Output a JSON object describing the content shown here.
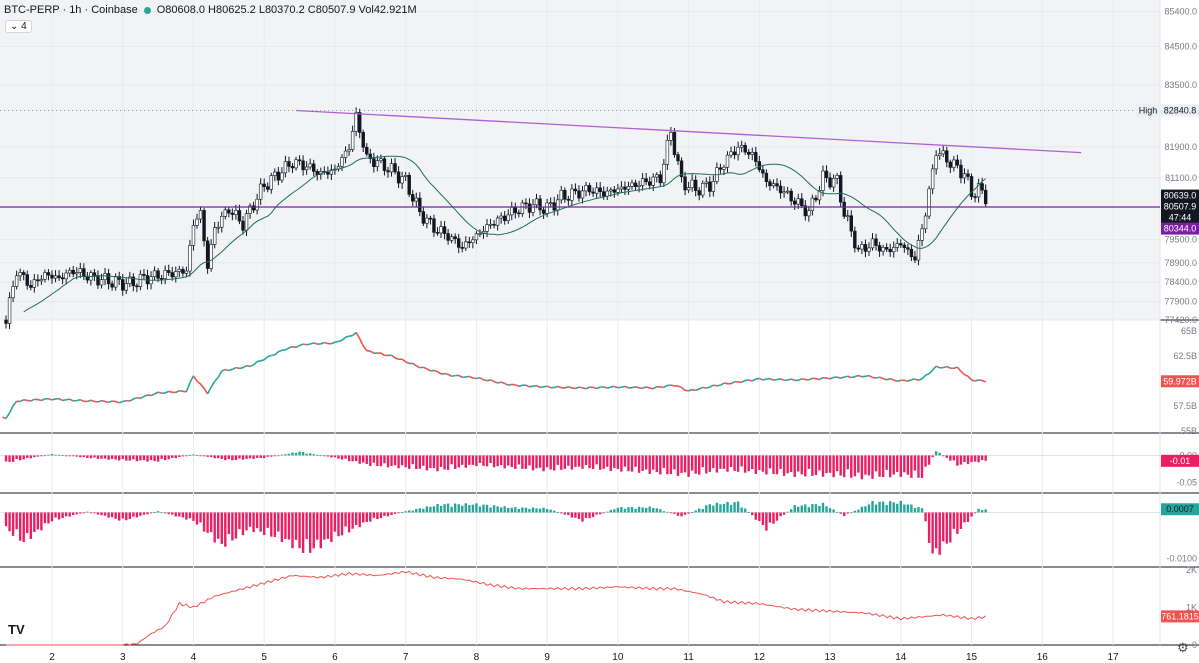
{
  "header": {
    "symbol": "BTC-PERP · 1h · Coinbase",
    "ohlcv": "O80608.0 H80625.2 L80370.2 C80507.9 Vol42.921M",
    "collapse_label": "4"
  },
  "logo_text": "TV",
  "colors": {
    "up": "#26a69a",
    "down": "#ef5350",
    "ma": "#1f6e5d",
    "trend": "#b05fd6",
    "level": "#7b1fa2",
    "osc": "#e91e63"
  },
  "chart_data": [
    {
      "type": "candlestick",
      "pane": "price",
      "ylim": [
        77420,
        85700
      ],
      "yticks": [
        "85400.0",
        "84500.0",
        "83500.0",
        "82840.8",
        "81900.0",
        "81100.0",
        "80639.0",
        "79500.0",
        "78900.0",
        "78400.0",
        "77900.0",
        "77420.0"
      ],
      "xticks": [
        "2",
        "3",
        "4",
        "5",
        "6",
        "7",
        "8",
        "9",
        "10",
        "11",
        "12",
        "13",
        "14",
        "15",
        "16",
        "17"
      ],
      "x_range": [
        1.3,
        17.8
      ],
      "closes": [
        [
          1.35,
          77420
        ],
        [
          1.5,
          78700
        ],
        [
          1.7,
          78300
        ],
        [
          1.9,
          78600
        ],
        [
          2.1,
          78500
        ],
        [
          2.3,
          78700
        ],
        [
          2.6,
          78500
        ],
        [
          2.9,
          78400
        ],
        [
          3.1,
          78350
        ],
        [
          3.3,
          78500
        ],
        [
          3.6,
          78600
        ],
        [
          3.9,
          78700
        ],
        [
          4.0,
          79900
        ],
        [
          4.1,
          80200
        ],
        [
          4.2,
          78800
        ],
        [
          4.3,
          79800
        ],
        [
          4.5,
          80300
        ],
        [
          4.7,
          79900
        ],
        [
          4.9,
          80600
        ],
        [
          5.0,
          80900
        ],
        [
          5.2,
          81200
        ],
        [
          5.4,
          81500
        ],
        [
          5.6,
          81400
        ],
        [
          5.8,
          81200
        ],
        [
          6.0,
          81300
        ],
        [
          6.2,
          81900
        ],
        [
          6.3,
          82700
        ],
        [
          6.45,
          81600
        ],
        [
          6.6,
          81500
        ],
        [
          6.8,
          81300
        ],
        [
          7.0,
          81000
        ],
        [
          7.2,
          80200
        ],
        [
          7.4,
          79800
        ],
        [
          7.6,
          79600
        ],
        [
          7.8,
          79300
        ],
        [
          8.0,
          79600
        ],
        [
          8.2,
          79900
        ],
        [
          8.4,
          80100
        ],
        [
          8.6,
          80300
        ],
        [
          8.8,
          80400
        ],
        [
          9.0,
          80300
        ],
        [
          9.2,
          80600
        ],
        [
          9.4,
          80700
        ],
        [
          9.6,
          80800
        ],
        [
          9.8,
          80700
        ],
        [
          10.0,
          80800
        ],
        [
          10.2,
          80900
        ],
        [
          10.4,
          81000
        ],
        [
          10.6,
          81100
        ],
        [
          10.75,
          82300
        ],
        [
          10.9,
          81000
        ],
        [
          11.1,
          80800
        ],
        [
          11.3,
          80900
        ],
        [
          11.5,
          81500
        ],
        [
          11.7,
          81900
        ],
        [
          11.9,
          81700
        ],
        [
          12.1,
          81000
        ],
        [
          12.3,
          80800
        ],
        [
          12.5,
          80500
        ],
        [
          12.7,
          80200
        ],
        [
          12.9,
          81100
        ],
        [
          13.1,
          81000
        ],
        [
          13.2,
          80200
        ],
        [
          13.4,
          79200
        ],
        [
          13.6,
          79400
        ],
        [
          13.8,
          79200
        ],
        [
          14.0,
          79400
        ],
        [
          14.2,
          79000
        ],
        [
          14.35,
          80200
        ],
        [
          14.5,
          81800
        ],
        [
          14.7,
          81500
        ],
        [
          14.9,
          81200
        ],
        [
          15.0,
          80700
        ],
        [
          15.1,
          80800
        ],
        [
          15.25,
          80508
        ]
      ],
      "ma_label": "",
      "trendline": {
        "from": [
          5.45,
          82840.8
        ],
        "to": [
          16.55,
          81750
        ]
      },
      "level_line": 80344.0,
      "level_line2": 82840.8,
      "labels": [
        {
          "text": "High",
          "value": "82840.8",
          "y": 82840.8,
          "style": "plain"
        },
        {
          "text": "",
          "value": "80639.0",
          "y": 80639.0,
          "style": "dark"
        },
        {
          "text": "",
          "value": "80507.9",
          "y": 80507.9,
          "style": "dark"
        },
        {
          "text": "",
          "value": "47:44",
          "y": 80420,
          "style": "dark-small"
        },
        {
          "text": "",
          "value": "80344.0",
          "y": 80344.0,
          "style": "purple"
        }
      ]
    },
    {
      "type": "line-dotted",
      "pane": "indicator-1",
      "ylim": [
        54800,
        66000
      ],
      "yticks": [
        "65B",
        "62.5B",
        "57.5B",
        "55B"
      ],
      "last_label": "59.972B",
      "values": [
        [
          1.35,
          56300
        ],
        [
          1.5,
          58000
        ],
        [
          2.0,
          58200
        ],
        [
          2.5,
          58000
        ],
        [
          3.0,
          57900
        ],
        [
          3.5,
          58800
        ],
        [
          3.9,
          59000
        ],
        [
          4.0,
          60500
        ],
        [
          4.2,
          58800
        ],
        [
          4.4,
          61000
        ],
        [
          4.8,
          61500
        ],
        [
          5.0,
          62200
        ],
        [
          5.3,
          63200
        ],
        [
          5.6,
          63700
        ],
        [
          6.0,
          63800
        ],
        [
          6.3,
          64800
        ],
        [
          6.45,
          63000
        ],
        [
          6.8,
          62500
        ],
        [
          7.2,
          61400
        ],
        [
          7.6,
          60600
        ],
        [
          8.0,
          60300
        ],
        [
          8.5,
          59600
        ],
        [
          9.0,
          59400
        ],
        [
          9.5,
          59300
        ],
        [
          10.0,
          59400
        ],
        [
          10.5,
          59300
        ],
        [
          10.8,
          59600
        ],
        [
          11.0,
          59000
        ],
        [
          11.5,
          59700
        ],
        [
          12.0,
          60200
        ],
        [
          12.5,
          60100
        ],
        [
          13.0,
          60300
        ],
        [
          13.5,
          60500
        ],
        [
          14.0,
          60000
        ],
        [
          14.3,
          60200
        ],
        [
          14.5,
          61400
        ],
        [
          14.8,
          61300
        ],
        [
          15.0,
          60100
        ],
        [
          15.25,
          59972
        ]
      ]
    },
    {
      "type": "histogram",
      "pane": "indicator-2",
      "ylim": [
        -0.07,
        0.04
      ],
      "yticks": [
        "0.00",
        "-0.05"
      ],
      "last_label": "-0.01",
      "amplitude": [
        [
          1.35,
          -0.015
        ],
        [
          2.0,
          0.003
        ],
        [
          2.5,
          -0.005
        ],
        [
          3.0,
          -0.01
        ],
        [
          3.5,
          -0.012
        ],
        [
          4.0,
          0.002
        ],
        [
          4.5,
          -0.01
        ],
        [
          5.0,
          -0.005
        ],
        [
          5.5,
          0.008
        ],
        [
          6.0,
          -0.005
        ],
        [
          6.5,
          -0.02
        ],
        [
          7.0,
          -0.025
        ],
        [
          7.5,
          -0.03
        ],
        [
          8.0,
          -0.02
        ],
        [
          8.5,
          -0.025
        ],
        [
          9.0,
          -0.03
        ],
        [
          9.5,
          -0.025
        ],
        [
          10.0,
          -0.03
        ],
        [
          10.5,
          -0.035
        ],
        [
          11.0,
          -0.04
        ],
        [
          11.5,
          -0.03
        ],
        [
          12.0,
          -0.035
        ],
        [
          12.5,
          -0.04
        ],
        [
          13.0,
          -0.04
        ],
        [
          13.5,
          -0.045
        ],
        [
          14.0,
          -0.04
        ],
        [
          14.3,
          -0.045
        ],
        [
          14.5,
          0.01
        ],
        [
          14.8,
          -0.02
        ],
        [
          15.0,
          -0.015
        ],
        [
          15.25,
          -0.01
        ]
      ]
    },
    {
      "type": "histogram",
      "pane": "indicator-3",
      "ylim": [
        -0.0118,
        0.004
      ],
      "yticks": [
        "0.0007",
        "-0.0100"
      ],
      "last_label": "0.0007",
      "amplitude": [
        [
          1.35,
          -0.004
        ],
        [
          1.6,
          -0.007
        ],
        [
          2.0,
          -0.002
        ],
        [
          2.5,
          0.0002
        ],
        [
          3.0,
          -0.002
        ],
        [
          3.5,
          0.0003
        ],
        [
          4.0,
          -0.002
        ],
        [
          4.4,
          -0.008
        ],
        [
          4.8,
          -0.004
        ],
        [
          5.2,
          -0.006
        ],
        [
          5.6,
          -0.0095
        ],
        [
          6.0,
          -0.006
        ],
        [
          6.5,
          -0.002
        ],
        [
          7.0,
          0.0003
        ],
        [
          7.5,
          0.002
        ],
        [
          8.0,
          0.002
        ],
        [
          8.5,
          0.0012
        ],
        [
          9.0,
          0.001
        ],
        [
          9.5,
          -0.002
        ],
        [
          10.0,
          0.0012
        ],
        [
          10.5,
          0.0013
        ],
        [
          10.9,
          -0.001
        ],
        [
          11.3,
          0.002
        ],
        [
          11.7,
          0.0025
        ],
        [
          12.1,
          -0.004
        ],
        [
          12.5,
          0.0016
        ],
        [
          12.9,
          0.0021
        ],
        [
          13.2,
          -0.0008
        ],
        [
          13.6,
          0.0025
        ],
        [
          14.0,
          0.0025
        ],
        [
          14.3,
          0.001
        ],
        [
          14.45,
          -0.0105
        ],
        [
          14.6,
          -0.0085
        ],
        [
          14.9,
          -0.003
        ],
        [
          15.1,
          0.0008
        ],
        [
          15.25,
          0.0007
        ]
      ]
    },
    {
      "type": "line",
      "pane": "indicator-4",
      "ylim": [
        0,
        2050
      ],
      "yticks": [
        "2K",
        "1K",
        "0"
      ],
      "last_label": "761.1815",
      "values": [
        [
          1.35,
          0
        ],
        [
          2.5,
          0
        ],
        [
          3.0,
          0
        ],
        [
          3.2,
          30
        ],
        [
          3.4,
          300
        ],
        [
          3.6,
          500
        ],
        [
          3.8,
          1100
        ],
        [
          4.0,
          1000
        ],
        [
          4.3,
          1300
        ],
        [
          4.6,
          1450
        ],
        [
          5.0,
          1650
        ],
        [
          5.4,
          1850
        ],
        [
          5.8,
          1800
        ],
        [
          6.2,
          1900
        ],
        [
          6.6,
          1850
        ],
        [
          7.0,
          1950
        ],
        [
          7.4,
          1800
        ],
        [
          7.8,
          1750
        ],
        [
          8.2,
          1600
        ],
        [
          8.6,
          1500
        ],
        [
          9.0,
          1500
        ],
        [
          9.5,
          1500
        ],
        [
          10.0,
          1550
        ],
        [
          10.5,
          1500
        ],
        [
          10.8,
          1500
        ],
        [
          11.2,
          1350
        ],
        [
          11.5,
          1150
        ],
        [
          12.0,
          1100
        ],
        [
          12.5,
          950
        ],
        [
          13.0,
          900
        ],
        [
          13.5,
          850
        ],
        [
          14.0,
          700
        ],
        [
          14.3,
          750
        ],
        [
          14.6,
          800
        ],
        [
          15.0,
          700
        ],
        [
          15.25,
          761
        ]
      ]
    }
  ]
}
